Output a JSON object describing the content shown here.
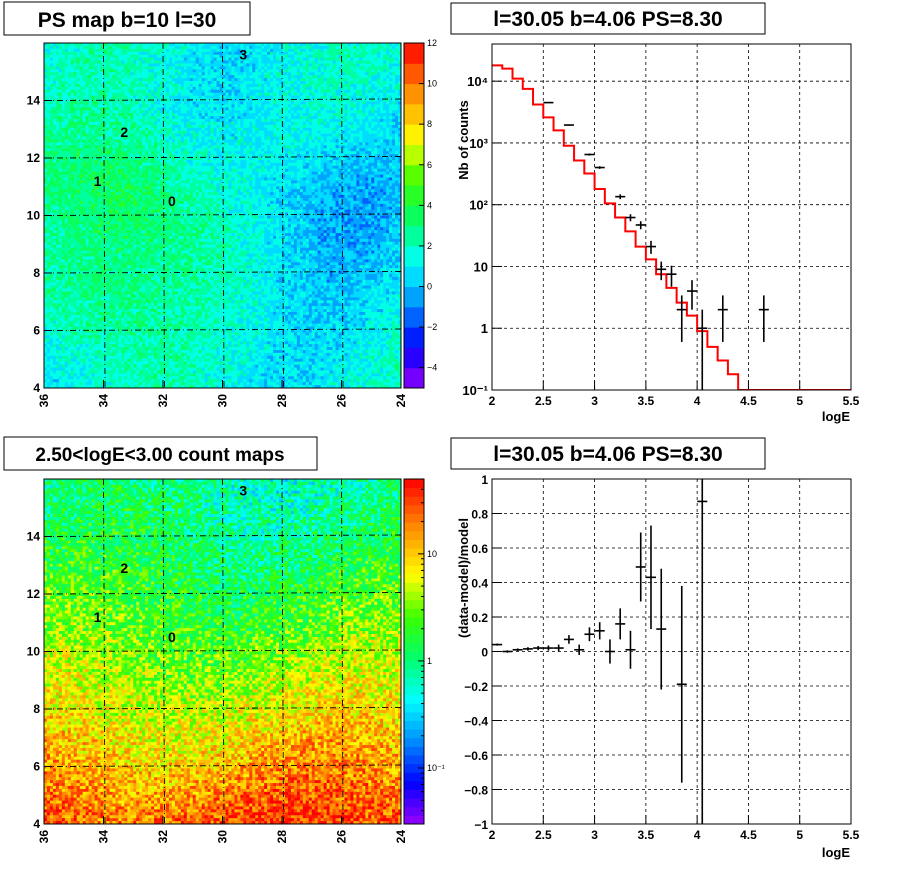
{
  "colors": {
    "model_line": "#ff0000",
    "data_points": "#000000"
  },
  "chart_data": [
    {
      "id": "ps_map",
      "type": "heatmap",
      "title": "PS map b=10 l=30",
      "xlim": [
        36,
        24
      ],
      "ylim": [
        4,
        16
      ],
      "x_ticks": [
        "36",
        "34",
        "32",
        "30",
        "28",
        "26",
        "24"
      ],
      "y_ticks": [
        "4",
        "6",
        "8",
        "10",
        "12",
        "14"
      ],
      "colorbar": {
        "scale": "linear",
        "range": [
          -5,
          12
        ],
        "ticks": [
          "12",
          "10",
          "8",
          "6",
          "4",
          "2",
          "0",
          "−2",
          "−4"
        ]
      },
      "annotations": [
        {
          "label": "3",
          "x": 29.3,
          "y": 15.6
        },
        {
          "label": "2",
          "x": 33.3,
          "y": 12.9
        },
        {
          "label": "1",
          "x": 34.2,
          "y": 11.2
        },
        {
          "label": "0",
          "x": 31.7,
          "y": 10.5
        }
      ]
    },
    {
      "id": "spectrum",
      "type": "line",
      "title": "l=30.05 b=4.06 PS=8.30",
      "xlabel": "logE",
      "ylabel": "Nb of counts",
      "xlim": [
        2,
        5.5
      ],
      "ylim": [
        0.1,
        40000
      ],
      "yscale": "log",
      "x_ticks": [
        "2",
        "2.5",
        "3",
        "3.5",
        "4",
        "4.5",
        "5",
        "5.5"
      ],
      "y_ticks": [
        "10⁻¹",
        "1",
        "10",
        "10²",
        "10³",
        "10⁴"
      ],
      "model": {
        "bin_edges": [
          2.0,
          2.1,
          2.2,
          2.3,
          2.4,
          2.5,
          2.6,
          2.7,
          2.8,
          2.9,
          3.0,
          3.1,
          3.2,
          3.3,
          3.4,
          3.5,
          3.6,
          3.7,
          3.8,
          3.9,
          4.0,
          4.1,
          4.2,
          4.3,
          4.4,
          5.5
        ],
        "values": [
          18000,
          16000,
          11000,
          7500,
          4200,
          2600,
          1600,
          900,
          520,
          320,
          180,
          105,
          62,
          37,
          21,
          13,
          7.5,
          4.5,
          2.6,
          1.6,
          0.9,
          0.5,
          0.3,
          0.18,
          0.1
        ]
      },
      "data": [
        {
          "x": 2.55,
          "y": 4500,
          "err": 70
        },
        {
          "x": 2.75,
          "y": 1950,
          "err": 45
        },
        {
          "x": 2.95,
          "y": 650,
          "err": 25
        },
        {
          "x": 3.05,
          "y": 400,
          "err": 20
        },
        {
          "x": 3.25,
          "y": 135,
          "err": 12
        },
        {
          "x": 3.35,
          "y": 62,
          "err": 8
        },
        {
          "x": 3.45,
          "y": 47,
          "err": 7
        },
        {
          "x": 3.55,
          "y": 21,
          "err": 5
        },
        {
          "x": 3.65,
          "y": 9,
          "err": 3
        },
        {
          "x": 3.75,
          "y": 7.5,
          "err": 2.8
        },
        {
          "x": 3.85,
          "y": 2,
          "err": 1.4
        },
        {
          "x": 3.95,
          "y": 4,
          "err": 2
        },
        {
          "x": 4.05,
          "y": 1,
          "err": 1
        },
        {
          "x": 4.25,
          "y": 2,
          "err": 1.4
        },
        {
          "x": 4.65,
          "y": 2,
          "err": 1.4
        }
      ]
    },
    {
      "id": "count_map",
      "type": "heatmap",
      "title": "2.50<logE<3.00 count maps",
      "xlim": [
        36,
        24
      ],
      "ylim": [
        4,
        16
      ],
      "x_ticks": [
        "36",
        "34",
        "32",
        "30",
        "28",
        "26",
        "24"
      ],
      "y_ticks": [
        "4",
        "6",
        "8",
        "10",
        "12",
        "14"
      ],
      "colorbar": {
        "scale": "log",
        "range": [
          0.03,
          50
        ],
        "ticks": [
          "10",
          "1",
          "10⁻¹"
        ]
      },
      "annotations": [
        {
          "label": "3",
          "x": 29.3,
          "y": 15.6
        },
        {
          "label": "2",
          "x": 33.3,
          "y": 12.9
        },
        {
          "label": "1",
          "x": 34.2,
          "y": 11.2
        },
        {
          "label": "0",
          "x": 31.7,
          "y": 10.5
        }
      ]
    },
    {
      "id": "residuals",
      "type": "scatter",
      "title": "l=30.05 b=4.06 PS=8.30",
      "xlabel": "logE",
      "ylabel": "(data-model)/model",
      "xlim": [
        2,
        5.5
      ],
      "ylim": [
        -1,
        1
      ],
      "x_ticks": [
        "2",
        "2.5",
        "3",
        "3.5",
        "4",
        "4.5",
        "5",
        "5.5"
      ],
      "y_ticks": [
        "−1",
        "−0.8",
        "−0.6",
        "−0.4",
        "−0.2",
        "0",
        "0.2",
        "0.4",
        "0.6",
        "0.8",
        "1"
      ],
      "data": [
        {
          "x": 2.05,
          "y": 0.04,
          "err": 0.006
        },
        {
          "x": 2.15,
          "y": 0.0,
          "err": 0.007
        },
        {
          "x": 2.25,
          "y": 0.01,
          "err": 0.008
        },
        {
          "x": 2.35,
          "y": 0.015,
          "err": 0.01
        },
        {
          "x": 2.45,
          "y": 0.02,
          "err": 0.012
        },
        {
          "x": 2.55,
          "y": 0.02,
          "err": 0.015
        },
        {
          "x": 2.65,
          "y": 0.02,
          "err": 0.02
        },
        {
          "x": 2.75,
          "y": 0.07,
          "err": 0.025
        },
        {
          "x": 2.85,
          "y": 0.01,
          "err": 0.03
        },
        {
          "x": 2.95,
          "y": 0.1,
          "err": 0.04
        },
        {
          "x": 3.05,
          "y": 0.12,
          "err": 0.05
        },
        {
          "x": 3.15,
          "y": 0.0,
          "err": 0.07
        },
        {
          "x": 3.25,
          "y": 0.16,
          "err": 0.09
        },
        {
          "x": 3.35,
          "y": 0.01,
          "err": 0.11
        },
        {
          "x": 3.45,
          "y": 0.49,
          "err": 0.2
        },
        {
          "x": 3.55,
          "y": 0.43,
          "err": 0.3
        },
        {
          "x": 3.65,
          "y": 0.13,
          "err": 0.35
        },
        {
          "x": 3.85,
          "y": -0.19,
          "err": 0.57
        },
        {
          "x": 4.05,
          "y": 0.87,
          "err": 1.9
        }
      ]
    }
  ]
}
